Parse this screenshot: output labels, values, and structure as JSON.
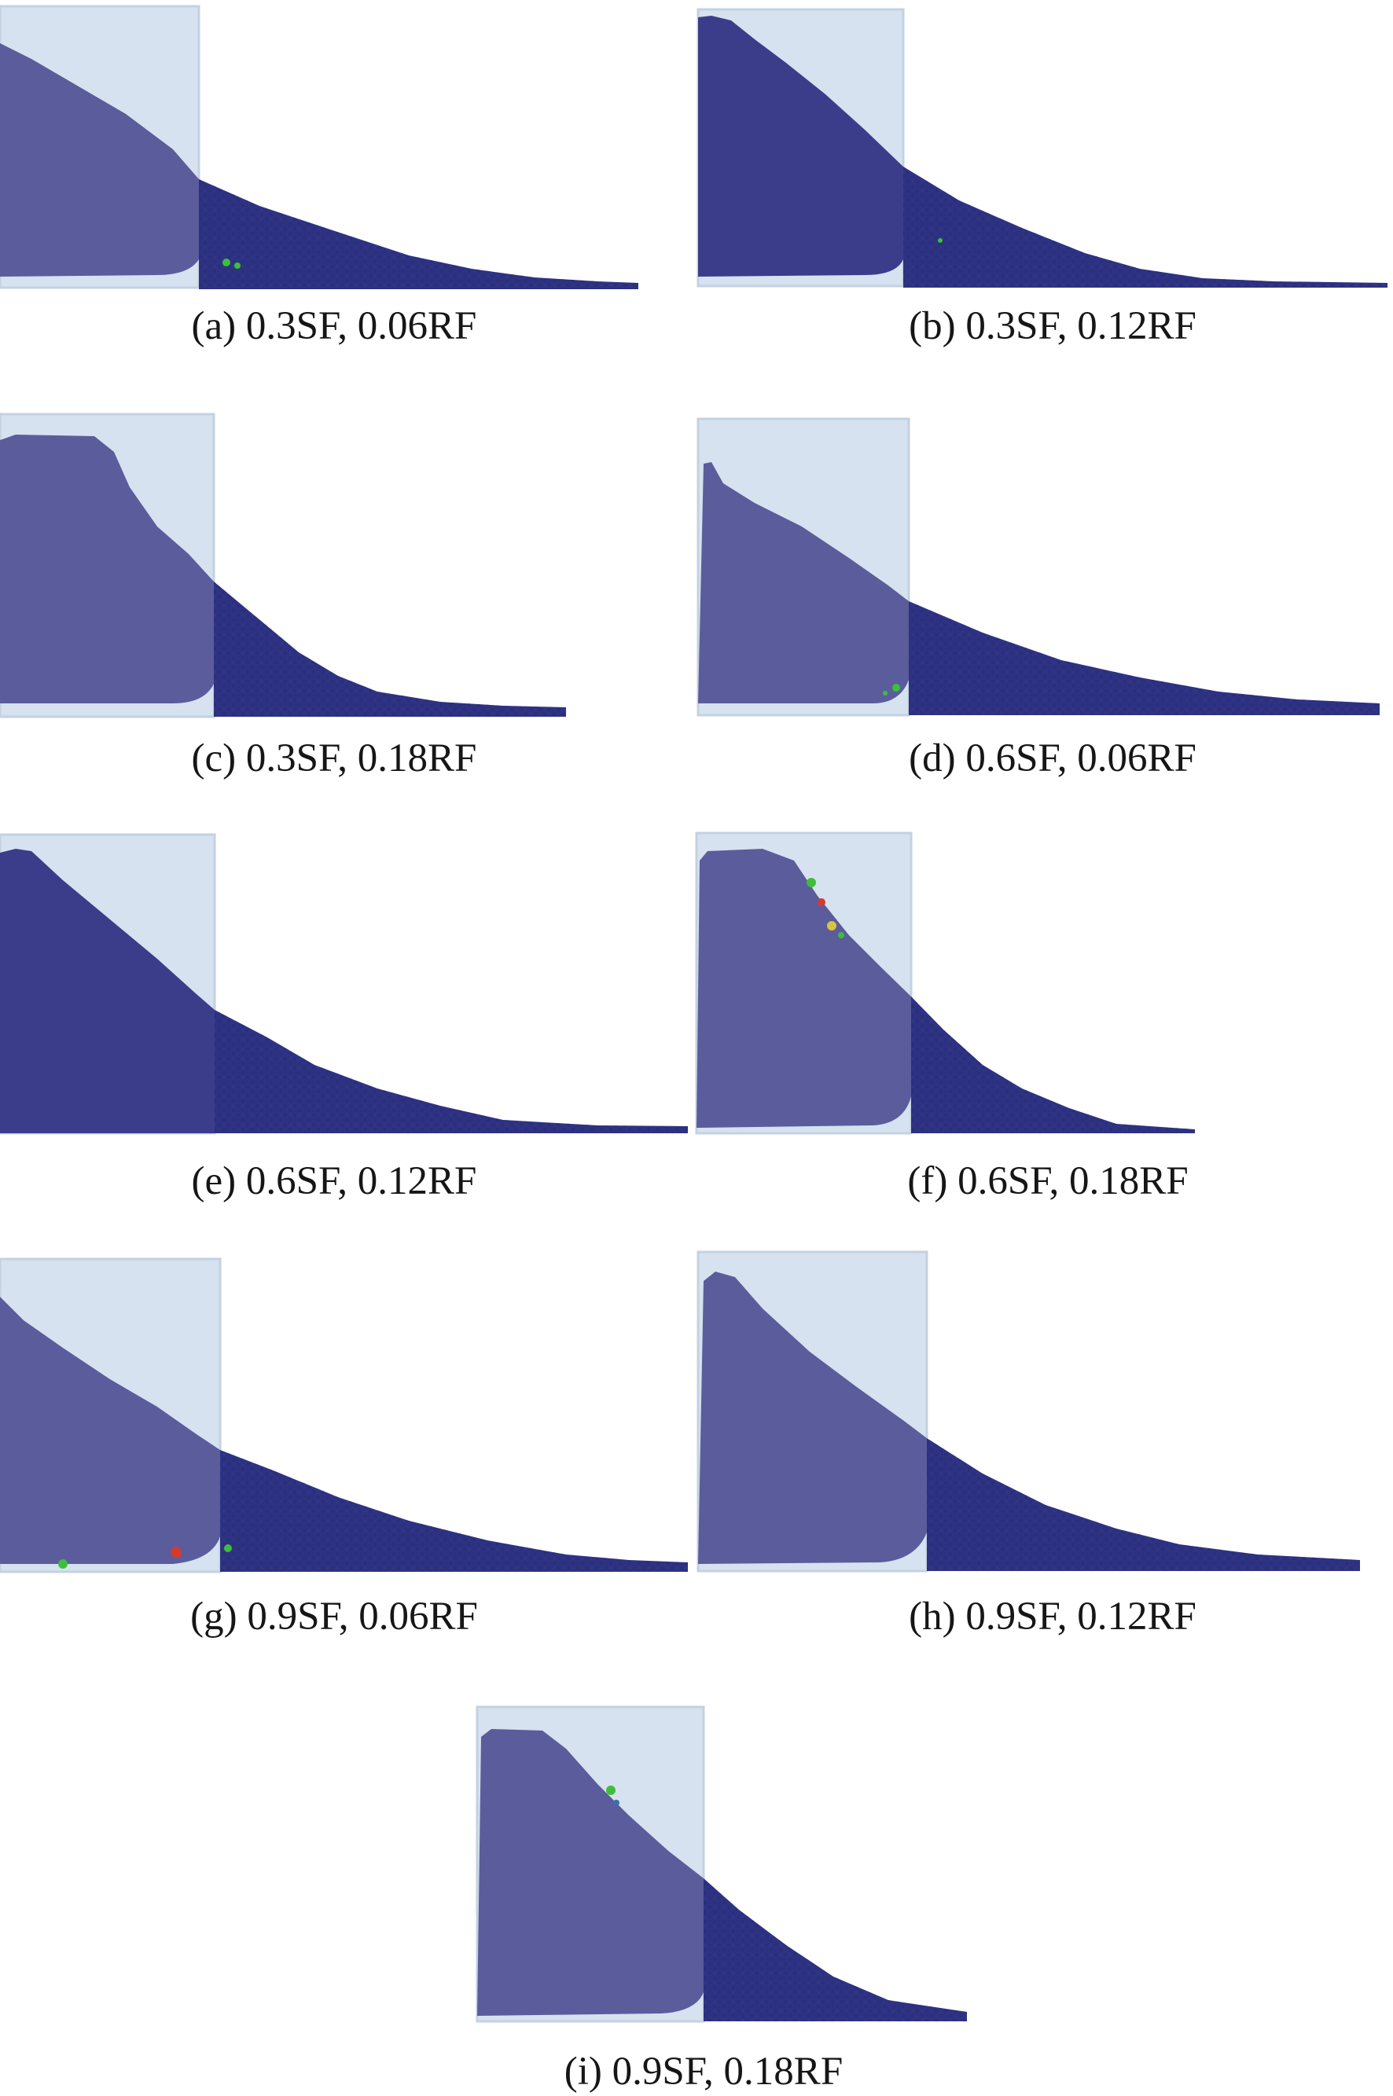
{
  "figure": {
    "panels": [
      {
        "id": "a",
        "label": "(a) 0.3SF, 0.06RF"
      },
      {
        "id": "b",
        "label": "(b) 0.3SF, 0.12RF"
      },
      {
        "id": "c",
        "label": "(c) 0.3SF, 0.18RF"
      },
      {
        "id": "d",
        "label": "(d) 0.6SF, 0.06RF"
      },
      {
        "id": "e",
        "label": "(e) 0.6SF, 0.12RF"
      },
      {
        "id": "f",
        "label": "(f) 0.6SF, 0.18RF"
      },
      {
        "id": "g",
        "label": "(g) 0.9SF, 0.06RF"
      },
      {
        "id": "h",
        "label": "(h) 0.9SF, 0.12RF"
      },
      {
        "id": "i",
        "label": "(i) 0.9SF, 0.18RF"
      }
    ],
    "colors": {
      "container": "#d6e2ef",
      "container_edge": "#c3d1e1",
      "particles_inside": "#5b5c9c",
      "particles_outside": "#2e3282",
      "particles_grain": "#272a74",
      "tracer_green": "#3cbf3a",
      "tracer_red": "#d43a30",
      "tracer_yellow": "#d8c340"
    }
  }
}
